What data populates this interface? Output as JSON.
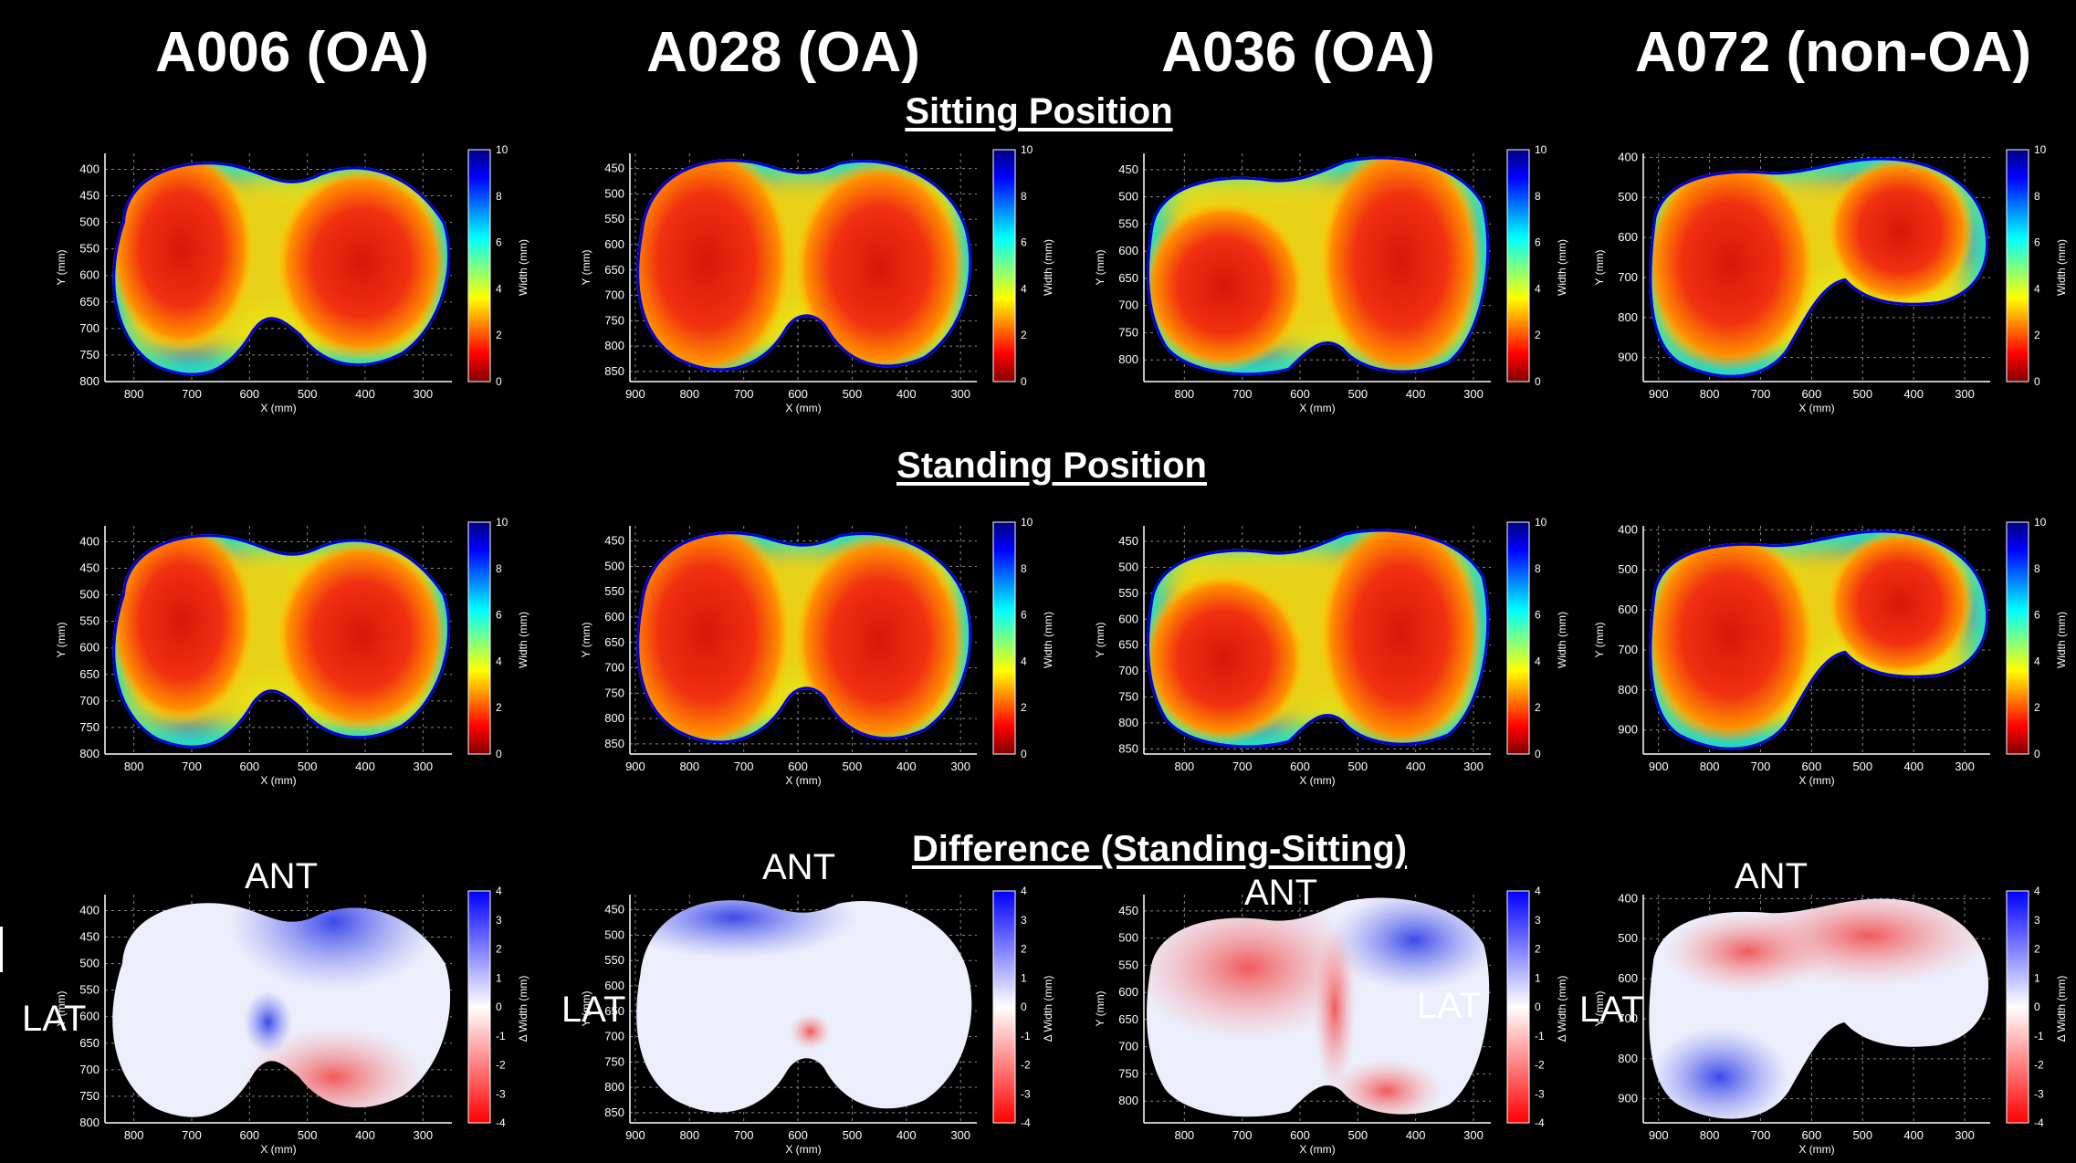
{
  "subjects": [
    "A006 (OA)",
    "A028 (OA)",
    "A036 (OA)",
    "A072 (non-OA)"
  ],
  "sections": {
    "sitting": "Sitting Position",
    "standing": "Standing Position",
    "difference": "Difference (Standing-Sitting)"
  },
  "annotations": {
    "anterior": "ANT",
    "lateral": "LAT"
  },
  "colors": {
    "background": "#000000",
    "low": "#d01010",
    "high": "#1010d0",
    "white": "#ffffff"
  },
  "chart_data": [
    {
      "type": "heatmap",
      "subject": "A006 (OA)",
      "row": "Sitting Position",
      "xlabel": "X (mm)",
      "ylabel": "Y (mm)",
      "colorbar_label": "Width (mm)",
      "xticks": [
        800,
        700,
        600,
        500,
        400,
        300
      ],
      "yticks": [
        400,
        450,
        500,
        550,
        600,
        650,
        700,
        750,
        800
      ],
      "colorbar_ticks": [
        0,
        2,
        4,
        6,
        8,
        10
      ],
      "xlim": [
        850,
        250
      ],
      "ylim": [
        800,
        370
      ],
      "clim": [
        0,
        10
      ]
    },
    {
      "type": "heatmap",
      "subject": "A028 (OA)",
      "row": "Sitting Position",
      "xlabel": "X (mm)",
      "ylabel": "Y (mm)",
      "colorbar_label": "Width (mm)",
      "xticks": [
        900,
        800,
        700,
        600,
        500,
        400,
        300
      ],
      "yticks": [
        450,
        500,
        550,
        600,
        650,
        700,
        750,
        800,
        850
      ],
      "colorbar_ticks": [
        0,
        2,
        4,
        6,
        8,
        10
      ],
      "xlim": [
        910,
        270
      ],
      "ylim": [
        870,
        420
      ],
      "clim": [
        0,
        10
      ]
    },
    {
      "type": "heatmap",
      "subject": "A036 (OA)",
      "row": "Sitting Position",
      "xlabel": "X (mm)",
      "ylabel": "Y (mm)",
      "colorbar_label": "Width (mm)",
      "xticks": [
        800,
        700,
        600,
        500,
        400,
        300
      ],
      "yticks": [
        450,
        500,
        550,
        600,
        650,
        700,
        750,
        800
      ],
      "colorbar_ticks": [
        0,
        2,
        4,
        6,
        8,
        10
      ],
      "xlim": [
        870,
        270
      ],
      "ylim": [
        840,
        420
      ],
      "clim": [
        0,
        10
      ]
    },
    {
      "type": "heatmap",
      "subject": "A072 (non-OA)",
      "row": "Sitting Position",
      "xlabel": "X (mm)",
      "ylabel": "Y (mm)",
      "colorbar_label": "Width (mm)",
      "xticks": [
        900,
        800,
        700,
        600,
        500,
        400,
        300
      ],
      "yticks": [
        400,
        500,
        600,
        700,
        800,
        900
      ],
      "colorbar_ticks": [
        0,
        2,
        4,
        6,
        8,
        10
      ],
      "xlim": [
        930,
        250
      ],
      "ylim": [
        960,
        390
      ],
      "clim": [
        0,
        10
      ]
    },
    {
      "type": "heatmap",
      "subject": "A006 (OA)",
      "row": "Standing Position",
      "xlabel": "X (mm)",
      "ylabel": "Y (mm)",
      "colorbar_label": "Width (mm)",
      "xticks": [
        800,
        700,
        600,
        500,
        400,
        300
      ],
      "yticks": [
        400,
        450,
        500,
        550,
        600,
        650,
        700,
        750,
        800
      ],
      "colorbar_ticks": [
        0,
        2,
        4,
        6,
        8,
        10
      ],
      "xlim": [
        850,
        250
      ],
      "ylim": [
        800,
        370
      ],
      "clim": [
        0,
        10
      ]
    },
    {
      "type": "heatmap",
      "subject": "A028 (OA)",
      "row": "Standing Position",
      "xlabel": "X (mm)",
      "ylabel": "Y (mm)",
      "colorbar_label": "Width (mm)",
      "xticks": [
        900,
        800,
        700,
        600,
        500,
        400,
        300
      ],
      "yticks": [
        450,
        500,
        550,
        600,
        650,
        700,
        750,
        800,
        850
      ],
      "colorbar_ticks": [
        0,
        2,
        4,
        6,
        8,
        10
      ],
      "xlim": [
        910,
        270
      ],
      "ylim": [
        870,
        420
      ],
      "clim": [
        0,
        10
      ]
    },
    {
      "type": "heatmap",
      "subject": "A036 (OA)",
      "row": "Standing Position",
      "xlabel": "X (mm)",
      "ylabel": "Y (mm)",
      "colorbar_label": "Width (mm)",
      "xticks": [
        800,
        700,
        600,
        500,
        400,
        300
      ],
      "yticks": [
        450,
        500,
        550,
        600,
        650,
        700,
        750,
        800,
        850
      ],
      "colorbar_ticks": [
        0,
        2,
        4,
        6,
        8,
        10
      ],
      "xlim": [
        870,
        270
      ],
      "ylim": [
        860,
        420
      ],
      "clim": [
        0,
        10
      ]
    },
    {
      "type": "heatmap",
      "subject": "A072 (non-OA)",
      "row": "Standing Position",
      "xlabel": "X (mm)",
      "ylabel": "Y (mm)",
      "colorbar_label": "Width (mm)",
      "xticks": [
        900,
        800,
        700,
        600,
        500,
        400,
        300
      ],
      "yticks": [
        400,
        500,
        600,
        700,
        800,
        900
      ],
      "colorbar_ticks": [
        0,
        2,
        4,
        6,
        8,
        10
      ],
      "xlim": [
        930,
        250
      ],
      "ylim": [
        960,
        390
      ],
      "clim": [
        0,
        10
      ]
    },
    {
      "type": "heatmap",
      "subject": "A006 (OA)",
      "row": "Difference (Standing-Sitting)",
      "xlabel": "X (mm)",
      "ylabel": "Y (mm)",
      "colorbar_label": "Δ Width (mm)",
      "xticks": [
        800,
        700,
        600,
        500,
        400,
        300
      ],
      "yticks": [
        400,
        450,
        500,
        550,
        600,
        650,
        700,
        750,
        800
      ],
      "colorbar_ticks": [
        -4,
        -3,
        -2,
        -1,
        0,
        1,
        2,
        3,
        4
      ],
      "xlim": [
        850,
        250
      ],
      "ylim": [
        800,
        370
      ],
      "clim": [
        -4,
        4
      ]
    },
    {
      "type": "heatmap",
      "subject": "A028 (OA)",
      "row": "Difference (Standing-Sitting)",
      "xlabel": "X (mm)",
      "ylabel": "Y (mm)",
      "colorbar_label": "Δ Width (mm)",
      "xticks": [
        900,
        800,
        700,
        600,
        500,
        400,
        300
      ],
      "yticks": [
        450,
        500,
        550,
        600,
        650,
        700,
        750,
        800,
        850
      ],
      "colorbar_ticks": [
        -4,
        -3,
        -2,
        -1,
        0,
        1,
        2,
        3,
        4
      ],
      "xlim": [
        910,
        270
      ],
      "ylim": [
        870,
        420
      ],
      "clim": [
        -4,
        4
      ]
    },
    {
      "type": "heatmap",
      "subject": "A036 (OA)",
      "row": "Difference (Standing-Sitting)",
      "xlabel": "X (mm)",
      "ylabel": "Y (mm)",
      "colorbar_label": "Δ Width (mm)",
      "xticks": [
        800,
        700,
        600,
        500,
        400,
        300
      ],
      "yticks": [
        450,
        500,
        550,
        600,
        650,
        700,
        750,
        800
      ],
      "colorbar_ticks": [
        -4,
        -3,
        -2,
        -1,
        0,
        1,
        2,
        3,
        4
      ],
      "xlim": [
        870,
        270
      ],
      "ylim": [
        840,
        420
      ],
      "clim": [
        -4,
        4
      ]
    },
    {
      "type": "heatmap",
      "subject": "A072 (non-OA)",
      "row": "Difference (Standing-Sitting)",
      "xlabel": "X (mm)",
      "ylabel": "Y (mm)",
      "colorbar_label": "Δ Width (mm)",
      "xticks": [
        900,
        800,
        700,
        600,
        500,
        400,
        300
      ],
      "yticks": [
        400,
        500,
        600,
        700,
        800,
        900
      ],
      "colorbar_ticks": [
        -4,
        -3,
        -2,
        -1,
        0,
        1,
        2,
        3,
        4
      ],
      "xlim": [
        930,
        250
      ],
      "ylim": [
        960,
        390
      ],
      "clim": [
        -4,
        4
      ]
    }
  ]
}
